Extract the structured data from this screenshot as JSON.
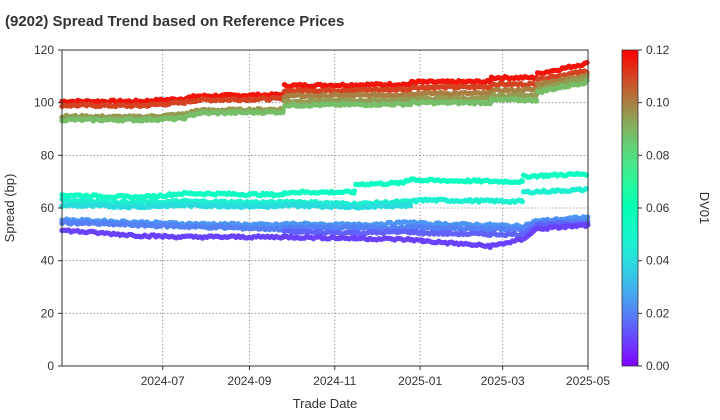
{
  "chart_data": {
    "type": "scatter",
    "title": "(9202)   Spread Trend based on Reference Prices",
    "xlabel": "Trade Date",
    "ylabel": "Spread (bp)",
    "ylim": [
      0,
      120
    ],
    "yticks": [
      0,
      20,
      40,
      60,
      80,
      100,
      120
    ],
    "xlim": [
      "2024-04-20",
      "2025-05-01"
    ],
    "xticks": [
      "2024-07",
      "2024-09",
      "2024-11",
      "2025-01",
      "2025-03",
      "2025-05"
    ],
    "grid": true,
    "colorbar": {
      "label": "DV01",
      "range": [
        0.0,
        0.12
      ],
      "ticks": [
        "0.00",
        "0.02",
        "0.04",
        "0.06",
        "0.08",
        "0.10",
        "0.12"
      ],
      "colormap": "rainbow"
    },
    "series": [
      {
        "dv01": 0.117,
        "points": [
          [
            "2024-04-20",
            100.5
          ],
          [
            "2024-06-15",
            100.5
          ],
          [
            "2024-07-15",
            101.5
          ],
          [
            "2024-07-26",
            102.5
          ],
          [
            "2024-09-25",
            103.0
          ],
          [
            "2024-09-26",
            106.5
          ],
          [
            "2024-12-25",
            107.0
          ],
          [
            "2024-12-26",
            108.0
          ],
          [
            "2025-01-03",
            107.8
          ],
          [
            "2025-02-20",
            108.0
          ],
          [
            "2025-02-21",
            109.5
          ],
          [
            "2025-03-25",
            109.5
          ],
          [
            "2025-03-26",
            111.0
          ],
          [
            "2025-05-01",
            115.0
          ]
        ]
      },
      {
        "dv01": 0.11,
        "points": [
          [
            "2024-04-20",
            99.0
          ],
          [
            "2024-06-15",
            98.8
          ],
          [
            "2024-07-15",
            100.0
          ],
          [
            "2024-07-26",
            101.0
          ],
          [
            "2024-09-25",
            101.5
          ],
          [
            "2024-09-26",
            104.5
          ],
          [
            "2024-12-25",
            105.0
          ],
          [
            "2024-12-26",
            106.0
          ],
          [
            "2025-01-03",
            105.8
          ],
          [
            "2025-02-20",
            106.0
          ],
          [
            "2025-02-21",
            107.0
          ],
          [
            "2025-03-25",
            107.0
          ],
          [
            "2025-03-26",
            109.0
          ],
          [
            "2025-05-01",
            112.0
          ]
        ]
      },
      {
        "dv01": 0.1,
        "points": [
          [
            "2024-09-26",
            102.5
          ],
          [
            "2024-12-25",
            103.0
          ],
          [
            "2024-12-26",
            103.5
          ],
          [
            "2025-01-03",
            103.5
          ],
          [
            "2025-02-20",
            103.5
          ],
          [
            "2025-02-21",
            104.5
          ],
          [
            "2025-03-25",
            105.0
          ],
          [
            "2025-03-26",
            107.0
          ],
          [
            "2025-05-01",
            110.5
          ]
        ]
      },
      {
        "dv01": 0.095,
        "points": [
          [
            "2024-04-20",
            94.8
          ],
          [
            "2024-06-15",
            94.5
          ],
          [
            "2024-07-15",
            95.5
          ],
          [
            "2024-07-26",
            97.0
          ],
          [
            "2024-09-25",
            97.5
          ],
          [
            "2024-09-26",
            100.5
          ],
          [
            "2024-12-25",
            101.0
          ],
          [
            "2024-12-26",
            101.5
          ],
          [
            "2025-01-03",
            101.5
          ],
          [
            "2025-02-20",
            101.5
          ],
          [
            "2025-02-21",
            102.5
          ],
          [
            "2025-03-25",
            103.0
          ],
          [
            "2025-03-26",
            105.0
          ],
          [
            "2025-05-01",
            109.5
          ]
        ]
      },
      {
        "dv01": 0.088,
        "points": [
          [
            "2024-04-20",
            93.5
          ],
          [
            "2024-06-15",
            93.5
          ],
          [
            "2024-07-15",
            94.0
          ],
          [
            "2024-07-26",
            96.0
          ],
          [
            "2024-09-25",
            96.5
          ],
          [
            "2024-09-26",
            99.0
          ],
          [
            "2024-12-25",
            99.5
          ],
          [
            "2024-12-26",
            100.0
          ],
          [
            "2025-01-03",
            100.0
          ],
          [
            "2025-02-20",
            100.0
          ],
          [
            "2025-02-21",
            101.0
          ],
          [
            "2025-03-25",
            101.0
          ],
          [
            "2025-03-26",
            104.0
          ],
          [
            "2025-05-01",
            108.0
          ]
        ]
      },
      {
        "dv01": 0.054,
        "points": [
          [
            "2024-04-20",
            65.0
          ],
          [
            "2024-06-15",
            64.0
          ],
          [
            "2024-07-15",
            65.5
          ],
          [
            "2024-07-26",
            65.5
          ],
          [
            "2024-09-25",
            65.0
          ],
          [
            "2024-09-26",
            66.0
          ],
          [
            "2024-11-15",
            66.0
          ],
          [
            "2024-11-16",
            69.0
          ],
          [
            "2024-12-20",
            69.5
          ],
          [
            "2024-12-22",
            70.5
          ],
          [
            "2024-12-26",
            71.0
          ],
          [
            "2025-01-03",
            70.5
          ],
          [
            "2025-03-15",
            70.0
          ],
          [
            "2025-03-16",
            72.0
          ],
          [
            "2025-05-01",
            73.0
          ]
        ]
      },
      {
        "dv01": 0.047,
        "points": [
          [
            "2024-04-20",
            63.0
          ],
          [
            "2024-06-15",
            62.0
          ],
          [
            "2024-07-15",
            62.5
          ],
          [
            "2024-09-25",
            62.0
          ],
          [
            "2024-09-26",
            62.5
          ],
          [
            "2024-11-15",
            61.5
          ],
          [
            "2024-12-26",
            62.5
          ],
          [
            "2025-01-03",
            63.0
          ],
          [
            "2025-03-15",
            62.5
          ],
          [
            "2025-03-16",
            66.0
          ],
          [
            "2025-05-01",
            67.0
          ]
        ]
      },
      {
        "dv01": 0.04,
        "points": [
          [
            "2024-04-20",
            61.0
          ],
          [
            "2024-06-15",
            60.5
          ],
          [
            "2024-07-15",
            61.0
          ],
          [
            "2024-09-25",
            60.5
          ],
          [
            "2024-09-26",
            61.0
          ],
          [
            "2024-11-15",
            60.5
          ],
          [
            "2024-12-26",
            61.0
          ]
        ]
      },
      {
        "dv01": 0.024,
        "points": [
          [
            "2024-04-20",
            55.5
          ],
          [
            "2024-06-15",
            54.5
          ],
          [
            "2024-07-15",
            54.0
          ],
          [
            "2024-09-25",
            53.5
          ],
          [
            "2024-09-26",
            54.0
          ],
          [
            "2024-11-15",
            53.5
          ],
          [
            "2024-12-26",
            54.5
          ],
          [
            "2025-01-03",
            54.0
          ],
          [
            "2025-02-20",
            53.5
          ],
          [
            "2025-03-15",
            53.0
          ],
          [
            "2025-03-25",
            55.0
          ],
          [
            "2025-05-01",
            56.5
          ]
        ]
      },
      {
        "dv01": 0.02,
        "points": [
          [
            "2024-04-20",
            54.5
          ],
          [
            "2024-06-15",
            53.5
          ],
          [
            "2024-07-15",
            53.0
          ],
          [
            "2024-09-25",
            52.0
          ],
          [
            "2024-09-26",
            52.5
          ],
          [
            "2024-11-15",
            52.5
          ],
          [
            "2024-12-26",
            52.5
          ],
          [
            "2025-01-03",
            52.5
          ],
          [
            "2025-02-20",
            52.0
          ],
          [
            "2025-03-15",
            52.0
          ],
          [
            "2025-03-25",
            54.5
          ],
          [
            "2025-05-01",
            55.0
          ]
        ]
      },
      {
        "dv01": 0.015,
        "points": [
          [
            "2024-09-26",
            51.0
          ],
          [
            "2024-11-15",
            50.5
          ],
          [
            "2024-12-26",
            51.0
          ],
          [
            "2025-01-03",
            50.5
          ],
          [
            "2025-02-20",
            50.0
          ],
          [
            "2025-03-15",
            50.0
          ],
          [
            "2025-03-25",
            53.5
          ],
          [
            "2025-05-01",
            54.0
          ]
        ]
      },
      {
        "dv01": 0.01,
        "points": [
          [
            "2024-04-20",
            51.5
          ],
          [
            "2024-06-15",
            49.5
          ],
          [
            "2024-07-15",
            49.0
          ],
          [
            "2024-09-25",
            49.0
          ],
          [
            "2024-09-26",
            49.0
          ],
          [
            "2024-11-15",
            48.5
          ],
          [
            "2024-12-26",
            48.0
          ],
          [
            "2025-01-03",
            47.5
          ],
          [
            "2025-02-20",
            45.5
          ],
          [
            "2025-03-15",
            48.0
          ],
          [
            "2025-03-25",
            52.0
          ],
          [
            "2025-05-01",
            53.5
          ]
        ]
      }
    ]
  }
}
